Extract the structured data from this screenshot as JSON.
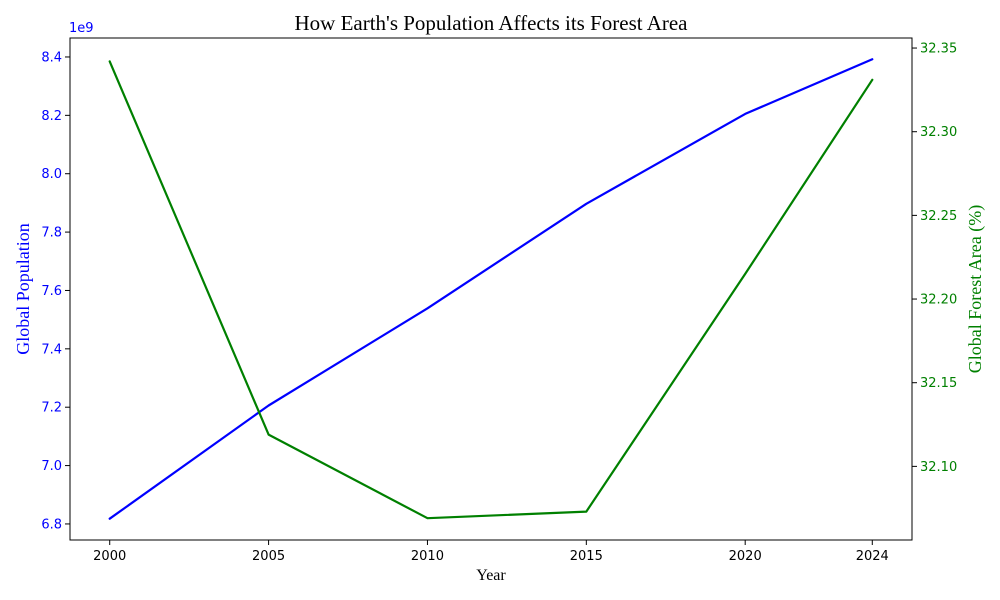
{
  "chart_data": {
    "type": "line",
    "title": "How Earth's Population Affects its Forest Area",
    "xlabel": "Year",
    "x": [
      2000,
      2005,
      2010,
      2015,
      2020,
      2024
    ],
    "x_ticks": [
      "2000",
      "2005",
      "2010",
      "2015",
      "2020",
      "2024"
    ],
    "xlim": [
      1998.75,
      2025.25
    ],
    "grid": false,
    "legend": "none",
    "y_left": {
      "label": "Global Population",
      "offset_text": "1e9",
      "color": "#0000ff",
      "ylim": [
        6.745,
        8.465
      ],
      "ticks": [
        6.8,
        7.0,
        7.2,
        7.4,
        7.6,
        7.8,
        8.0,
        8.2,
        8.4
      ],
      "tick_labels": [
        "6.8",
        "7.0",
        "7.2",
        "7.4",
        "7.6",
        "7.8",
        "8.0",
        "8.2",
        "8.4"
      ]
    },
    "y_right": {
      "label": "Global Forest Area (%)",
      "color": "#008000",
      "ylim": [
        32.056,
        32.356
      ],
      "ticks": [
        32.1,
        32.15,
        32.2,
        32.25,
        32.3,
        32.35
      ],
      "tick_labels": [
        "32.10",
        "32.15",
        "32.20",
        "32.25",
        "32.30",
        "32.35"
      ]
    },
    "series": [
      {
        "axis": "left",
        "color": "#0000ff",
        "values": [
          6.818,
          7.206,
          7.539,
          7.897,
          8.205,
          8.392
        ]
      },
      {
        "axis": "right",
        "color": "#008000",
        "values": [
          32.342,
          32.119,
          32.069,
          32.073,
          32.215,
          32.331
        ]
      }
    ]
  }
}
